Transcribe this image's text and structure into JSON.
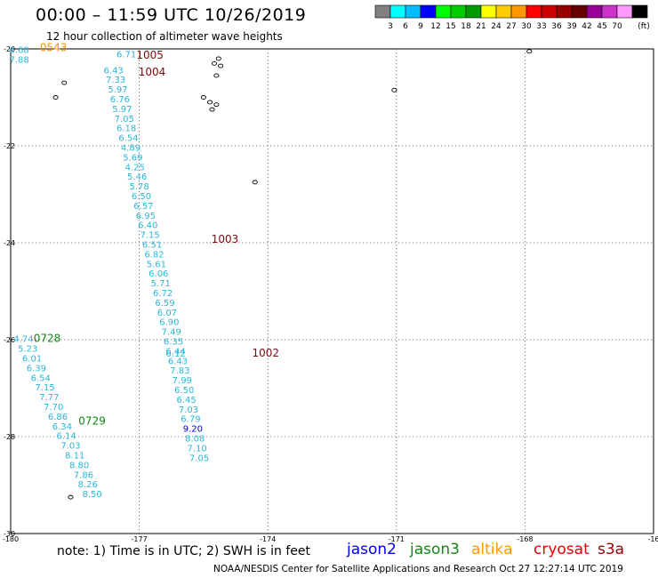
{
  "header": {
    "title": "00:00 – 11:59 UTC 10/26/2019",
    "subtitle": "12 hour collection of altimeter wave heights"
  },
  "colorbar": {
    "unit": "(ft)",
    "colors": [
      "#808080",
      "#00ffff",
      "#00bfff",
      "#0000ff",
      "#00ff00",
      "#00cc00",
      "#009900",
      "#ffff00",
      "#ffcc00",
      "#ff9900",
      "#ff0000",
      "#cc0000",
      "#990000",
      "#660000",
      "#990099",
      "#cc33cc",
      "#ff99ff",
      "#000000"
    ],
    "labels": [
      "3",
      "6",
      "9",
      "12",
      "15",
      "18",
      "21",
      "24",
      "27",
      "30",
      "33",
      "36",
      "39",
      "42",
      "45",
      "70"
    ]
  },
  "map": {
    "lon_range": [
      -180,
      -165
    ],
    "lat_range": [
      -30,
      -20
    ],
    "lon_ticks": [
      "-180",
      "-177",
      "-174",
      "-171",
      "-168",
      "-16"
    ],
    "lat_ticks": [
      "-20",
      "-22",
      "-24",
      "-26",
      "-28",
      "-30"
    ],
    "lon_grid": [
      -177,
      -174,
      -171,
      -168
    ],
    "lat_grid": [
      -22,
      -24,
      -26,
      -28
    ],
    "track_color": "#29b7d9",
    "tracks": [
      {
        "points": [
          {
            "lon": -179.8,
            "lat": -20.08,
            "v": "6.68"
          },
          {
            "lon": -179.8,
            "lat": -20.28,
            "v": "7.88"
          }
        ]
      },
      {
        "points": [
          {
            "lon": -177.3,
            "lat": -20.17,
            "v": "6.71"
          },
          {
            "lon": -177.6,
            "lat": -20.5,
            "v": "6.43"
          },
          {
            "lon": -177.55,
            "lat": -20.7,
            "v": "7.33"
          },
          {
            "lon": -177.5,
            "lat": -20.9,
            "v": "5.97"
          },
          {
            "lon": -177.45,
            "lat": -21.1,
            "v": "6.76"
          },
          {
            "lon": -177.4,
            "lat": -21.3,
            "v": "5.97"
          },
          {
            "lon": -177.35,
            "lat": -21.5,
            "v": "7.05"
          },
          {
            "lon": -177.3,
            "lat": -21.7,
            "v": "6.18"
          },
          {
            "lon": -177.25,
            "lat": -21.9,
            "v": "6.54"
          },
          {
            "lon": -177.2,
            "lat": -22.1,
            "v": "4.89"
          },
          {
            "lon": -177.15,
            "lat": -22.3,
            "v": "5.69"
          },
          {
            "lon": -177.1,
            "lat": -22.5,
            "v": "4.25"
          },
          {
            "lon": -177.05,
            "lat": -22.7,
            "v": "5.46"
          },
          {
            "lon": -177.0,
            "lat": -22.9,
            "v": "5.78"
          },
          {
            "lon": -176.95,
            "lat": -23.1,
            "v": "6.50"
          },
          {
            "lon": -176.9,
            "lat": -23.3,
            "v": "6.57"
          },
          {
            "lon": -176.85,
            "lat": -23.5,
            "v": "6.95"
          },
          {
            "lon": -176.8,
            "lat": -23.7,
            "v": "6.40"
          },
          {
            "lon": -176.75,
            "lat": -23.9,
            "v": "7.15"
          },
          {
            "lon": -176.7,
            "lat": -24.1,
            "v": "6.51"
          },
          {
            "lon": -176.65,
            "lat": -24.3,
            "v": "6.82"
          },
          {
            "lon": -176.6,
            "lat": -24.5,
            "v": "5.61"
          },
          {
            "lon": -176.55,
            "lat": -24.7,
            "v": "6.06"
          },
          {
            "lon": -176.5,
            "lat": -24.9,
            "v": "5.71"
          },
          {
            "lon": -176.45,
            "lat": -25.1,
            "v": "6.72"
          },
          {
            "lon": -176.4,
            "lat": -25.3,
            "v": "6.59"
          },
          {
            "lon": -176.35,
            "lat": -25.5,
            "v": "6.07"
          },
          {
            "lon": -176.3,
            "lat": -25.7,
            "v": "6.90"
          },
          {
            "lon": -176.25,
            "lat": -25.9,
            "v": "7.49"
          },
          {
            "lon": -176.2,
            "lat": -26.1,
            "v": "6.35"
          },
          {
            "lon": -176.15,
            "lat": -26.3,
            "v": "6.44"
          },
          {
            "lon": -176.15,
            "lat": -26.35,
            "v": "6.12"
          },
          {
            "lon": -176.1,
            "lat": -26.5,
            "v": "6.43"
          },
          {
            "lon": -176.05,
            "lat": -26.7,
            "v": "7.83"
          },
          {
            "lon": -176.0,
            "lat": -26.9,
            "v": "7.99"
          },
          {
            "lon": -175.95,
            "lat": -27.1,
            "v": "6.50"
          },
          {
            "lon": -175.9,
            "lat": -27.3,
            "v": "6.45"
          },
          {
            "lon": -175.85,
            "lat": -27.5,
            "v": "7.03"
          },
          {
            "lon": -175.8,
            "lat": -27.7,
            "v": "6.79"
          },
          {
            "lon": -175.75,
            "lat": -27.9,
            "v": "9.20",
            "hl": true
          },
          {
            "lon": -175.7,
            "lat": -28.1,
            "v": "8.08"
          },
          {
            "lon": -175.65,
            "lat": -28.3,
            "v": "7.10"
          },
          {
            "lon": -175.6,
            "lat": -28.5,
            "v": "7.05"
          }
        ]
      },
      {
        "points": [
          {
            "lon": -179.7,
            "lat": -26.05,
            "v": "4.74"
          },
          {
            "lon": -179.6,
            "lat": -26.25,
            "v": "5.23"
          },
          {
            "lon": -179.5,
            "lat": -26.45,
            "v": "6.01"
          },
          {
            "lon": -179.4,
            "lat": -26.65,
            "v": "6.39"
          },
          {
            "lon": -179.3,
            "lat": -26.85,
            "v": "6.54"
          },
          {
            "lon": -179.2,
            "lat": -27.05,
            "v": "7.15"
          },
          {
            "lon": -179.1,
            "lat": -27.25,
            "v": "7.77"
          },
          {
            "lon": -179.0,
            "lat": -27.45,
            "v": "7.70"
          },
          {
            "lon": -178.9,
            "lat": -27.65,
            "v": "6.86"
          },
          {
            "lon": -178.8,
            "lat": -27.85,
            "v": "6.34"
          },
          {
            "lon": -178.7,
            "lat": -28.05,
            "v": "6.14"
          },
          {
            "lon": -178.6,
            "lat": -28.25,
            "v": "7.03"
          },
          {
            "lon": -178.5,
            "lat": -28.45,
            "v": "8.11"
          },
          {
            "lon": -178.4,
            "lat": -28.65,
            "v": "8.80"
          },
          {
            "lon": -178.3,
            "lat": -28.85,
            "v": "7.86"
          },
          {
            "lon": -178.2,
            "lat": -29.05,
            "v": "8.26"
          },
          {
            "lon": -178.1,
            "lat": -29.25,
            "v": "8.50"
          }
        ]
      }
    ],
    "time_labels": [
      {
        "text": "0543",
        "color": "#f0900c"
      },
      {
        "text": "1005",
        "color": "#7a0a0a"
      },
      {
        "text": "1004",
        "color": "#7a0a0a"
      },
      {
        "text": "1003",
        "color": "#7a0a0a"
      },
      {
        "text": "1002",
        "color": "#7a0a0a"
      },
      {
        "text": "0728",
        "color": "#118811"
      },
      {
        "text": "0729",
        "color": "#118811"
      }
    ]
  },
  "legend": {
    "note": "note: 1) Time is in UTC; 2) SWH is in feet",
    "missions": [
      {
        "name": "jason2",
        "color": "#0000ee"
      },
      {
        "name": "jason3",
        "color": "#118811"
      },
      {
        "name": "altika",
        "color": "#ff9900"
      },
      {
        "name": "cryosat",
        "color": "#ee0000"
      },
      {
        "name": "s3a",
        "color": "#990000"
      }
    ]
  },
  "footer": "NOAA/NESDIS Center for Satellite Applications and Research   Oct 27 12:27:14 UTC 2019"
}
